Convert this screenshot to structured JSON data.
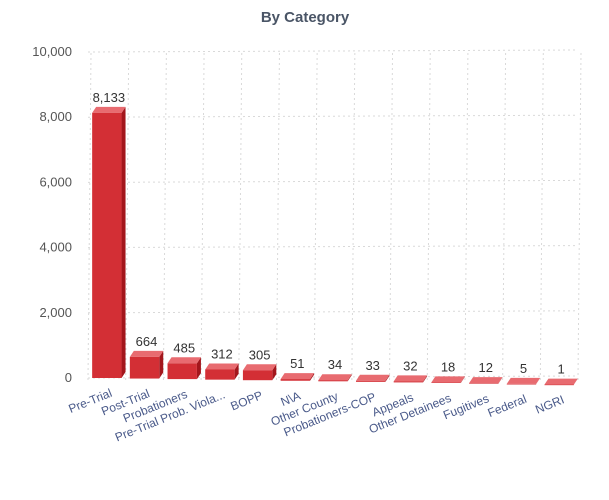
{
  "chart_data": {
    "type": "bar",
    "title": "By Category",
    "xlabel": "",
    "ylabel": "",
    "ylim": [
      0,
      10000
    ],
    "yticks": [
      0,
      2000,
      4000,
      6000,
      8000,
      10000
    ],
    "ytick_labels": [
      "0",
      "2,000",
      "4,000",
      "6,000",
      "8,000",
      "10,000"
    ],
    "categories": [
      "Pre-Trial",
      "Post-Trial",
      "Probationers",
      "Pre-Trial Prob. Viola...",
      "BOPP",
      "N\\A",
      "Other County",
      "Probationers-COP",
      "Appeals",
      "Other Detainees",
      "Fugitives",
      "Federal",
      "NGRI"
    ],
    "values": [
      8133,
      664,
      485,
      312,
      305,
      51,
      34,
      33,
      32,
      18,
      12,
      5,
      1
    ],
    "data_labels": [
      "8,133",
      "664",
      "485",
      "312",
      "305",
      "51",
      "34",
      "33",
      "32",
      "18",
      "12",
      "5",
      "1"
    ],
    "grid": true,
    "bar_color": "#d32f35",
    "bar_side_color": "#a3161c",
    "bar_top_color": "#e86b70"
  }
}
